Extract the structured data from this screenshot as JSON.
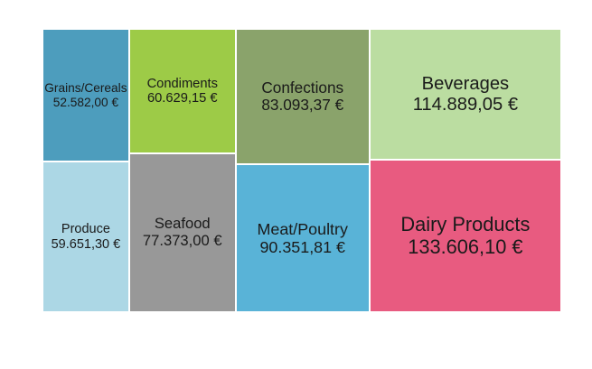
{
  "chart_data": {
    "type": "treemap",
    "currency": "€",
    "items": [
      {
        "category": "Dairy Products",
        "value": 133606.1,
        "label": "133.606,10 €",
        "color": "#e85b80"
      },
      {
        "category": "Beverages",
        "value": 114889.05,
        "label": "114.889,05 €",
        "color": "#bbdda1"
      },
      {
        "category": "Meat/Poultry",
        "value": 90351.81,
        "label": "90.351,81 €",
        "color": "#59b3d7"
      },
      {
        "category": "Confections",
        "value": 83093.37,
        "label": "83.093,37 €",
        "color": "#8aa36b"
      },
      {
        "category": "Seafood",
        "value": 77373.0,
        "label": "77.373,00 €",
        "color": "#989898"
      },
      {
        "category": "Condiments",
        "value": 60629.15,
        "label": "60.629,15 €",
        "color": "#9dcb47"
      },
      {
        "category": "Produce",
        "value": 59651.3,
        "label": "59.651,30 €",
        "color": "#acd7e5"
      },
      {
        "category": "Grains/Cereals",
        "value": 52582.0,
        "label": "52.582,00 €",
        "color": "#4d9dbd"
      }
    ]
  }
}
